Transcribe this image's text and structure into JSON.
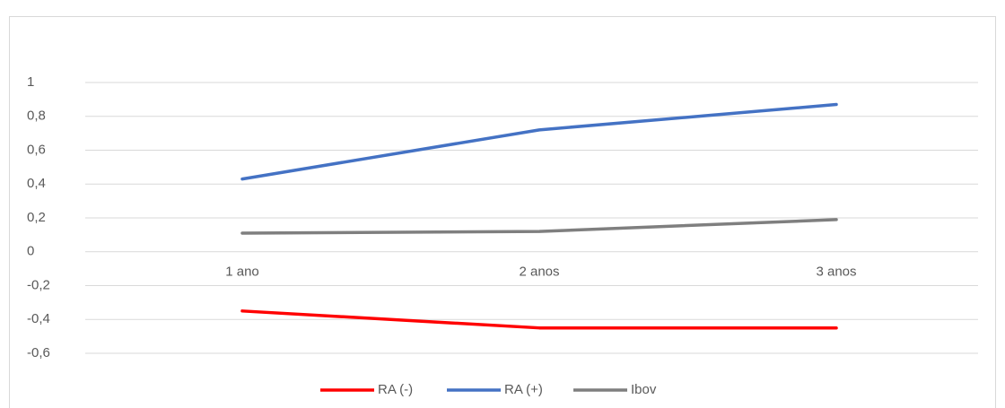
{
  "chart_data": {
    "type": "line",
    "categories": [
      "1 ano",
      "2 anos",
      "3 anos"
    ],
    "series": [
      {
        "name": "RA (-)",
        "color": "#ff0000",
        "values": [
          -0.35,
          -0.45,
          -0.45
        ]
      },
      {
        "name": "RA (+)",
        "color": "#4472c4",
        "values": [
          0.43,
          0.72,
          0.87
        ]
      },
      {
        "name": "Ibov",
        "color": "#7f7f7f",
        "values": [
          0.11,
          0.12,
          0.19
        ]
      }
    ],
    "ylim": [
      -0.6,
      1
    ],
    "yticks": [
      {
        "value": -0.6,
        "label": "-0,6"
      },
      {
        "value": -0.4,
        "label": "-0,4"
      },
      {
        "value": -0.2,
        "label": "-0,2"
      },
      0,
      {
        "value": 0.2,
        "label": "0,2"
      },
      {
        "value": 0.4,
        "label": "0,4"
      },
      {
        "value": 0.6,
        "label": "0,6"
      },
      {
        "value": 0.8,
        "label": "0,8"
      },
      1
    ],
    "grid": true,
    "legend": "bottom"
  }
}
